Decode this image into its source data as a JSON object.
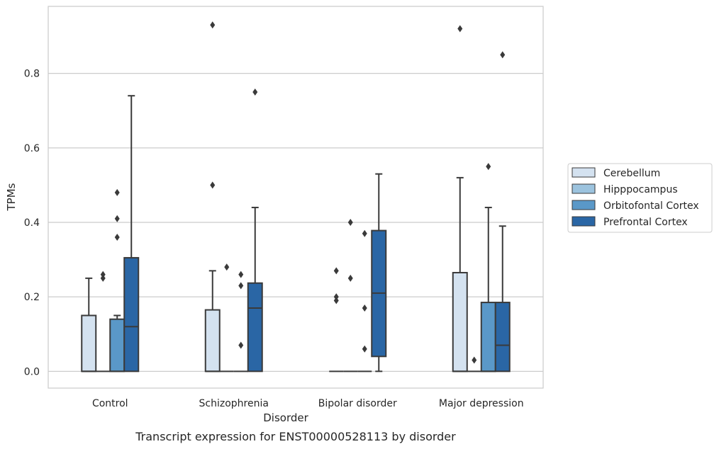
{
  "caption": "Transcript expression for ENST00000528113 by disorder",
  "chart_data": {
    "type": "box",
    "xlabel": "Disorder",
    "ylabel": "TPMs",
    "ylim": [
      -0.045,
      0.98
    ],
    "yticks": [
      "0.0",
      "0.2",
      "0.4",
      "0.6",
      "0.8"
    ],
    "ytick_values": [
      0.0,
      0.2,
      0.4,
      0.6,
      0.8
    ],
    "grid": "horizontal",
    "legend_placement": "right-center",
    "categories": [
      "Control",
      "Schizophrenia",
      "Bipolar disorder",
      "Major depression"
    ],
    "series": [
      {
        "name": "Cerebellum",
        "color": "#d4e2f0",
        "boxes": [
          {
            "q1": 0.0,
            "median": 0.0,
            "q3": 0.15,
            "whisker_low": 0.0,
            "whisker_high": 0.25,
            "outliers": []
          },
          {
            "q1": 0.0,
            "median": 0.0,
            "q3": 0.165,
            "whisker_low": 0.0,
            "whisker_high": 0.27,
            "outliers": [
              0.5,
              0.93
            ]
          },
          {
            "q1": 0.0,
            "median": 0.0,
            "q3": 0.0,
            "whisker_low": 0.0,
            "whisker_high": 0.0,
            "outliers": [
              0.27,
              0.2,
              0.19
            ]
          },
          {
            "q1": 0.0,
            "median": 0.0,
            "q3": 0.265,
            "whisker_low": 0.0,
            "whisker_high": 0.52,
            "outliers": [
              0.92
            ]
          }
        ]
      },
      {
        "name": "Hipppocampus",
        "color": "#9cc3de",
        "boxes": [
          {
            "q1": 0.0,
            "median": 0.0,
            "q3": 0.0,
            "whisker_low": 0.0,
            "whisker_high": 0.0,
            "outliers": [
              0.26,
              0.25
            ]
          },
          {
            "q1": 0.0,
            "median": 0.0,
            "q3": 0.0,
            "whisker_low": 0.0,
            "whisker_high": 0.0,
            "outliers": [
              0.28
            ]
          },
          {
            "q1": 0.0,
            "median": 0.0,
            "q3": 0.0,
            "whisker_low": 0.0,
            "whisker_high": 0.0,
            "outliers": [
              0.4,
              0.25
            ]
          },
          {
            "q1": 0.0,
            "median": 0.0,
            "q3": 0.0,
            "whisker_low": 0.0,
            "whisker_high": 0.0,
            "outliers": [
              0.03
            ]
          }
        ]
      },
      {
        "name": "Orbitofontal Cortex",
        "color": "#5a98c8",
        "boxes": [
          {
            "q1": 0.0,
            "median": 0.0,
            "q3": 0.14,
            "whisker_low": 0.0,
            "whisker_high": 0.15,
            "outliers": [
              0.48,
              0.41,
              0.36
            ]
          },
          {
            "q1": 0.0,
            "median": 0.0,
            "q3": 0.0,
            "whisker_low": 0.0,
            "whisker_high": 0.0,
            "outliers": [
              0.26,
              0.23,
              0.07
            ]
          },
          {
            "q1": 0.0,
            "median": 0.0,
            "q3": 0.0,
            "whisker_low": 0.0,
            "whisker_high": 0.0,
            "outliers": [
              0.37,
              0.17,
              0.06
            ]
          },
          {
            "q1": 0.0,
            "median": 0.0,
            "q3": 0.185,
            "whisker_low": 0.0,
            "whisker_high": 0.44,
            "outliers": [
              0.55
            ]
          }
        ]
      },
      {
        "name": "Prefrontal Cortex",
        "color": "#2a66a5",
        "boxes": [
          {
            "q1": 0.0,
            "median": 0.12,
            "q3": 0.305,
            "whisker_low": 0.0,
            "whisker_high": 0.74,
            "outliers": []
          },
          {
            "q1": 0.0,
            "median": 0.17,
            "q3": 0.237,
            "whisker_low": 0.0,
            "whisker_high": 0.44,
            "outliers": [
              0.75
            ]
          },
          {
            "q1": 0.04,
            "median": 0.21,
            "q3": 0.378,
            "whisker_low": 0.0,
            "whisker_high": 0.53,
            "outliers": []
          },
          {
            "q1": 0.0,
            "median": 0.07,
            "q3": 0.185,
            "whisker_low": 0.0,
            "whisker_high": 0.39,
            "outliers": [
              0.85
            ]
          }
        ]
      }
    ]
  }
}
